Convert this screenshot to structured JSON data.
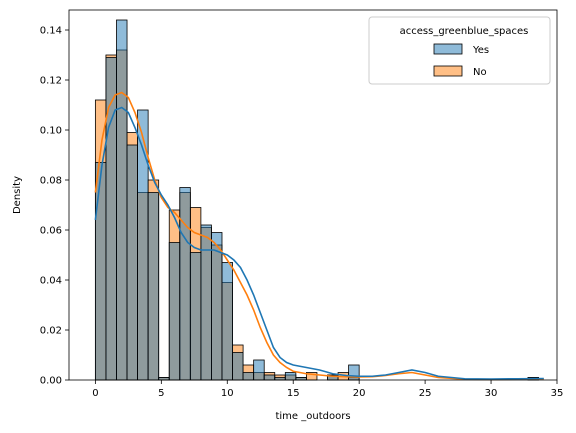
{
  "chart_data": {
    "type": "histogram",
    "xlabel": "time _outdoors",
    "ylabel": "Density",
    "xlim": [
      -2,
      35
    ],
    "ylim": [
      0,
      0.148
    ],
    "x_ticks": [
      0,
      5,
      10,
      15,
      20,
      25,
      30,
      35
    ],
    "y_ticks": [
      0.0,
      0.02,
      0.04,
      0.06,
      0.08,
      0.1,
      0.12,
      0.14
    ],
    "y_tick_labels": [
      "0.00",
      "0.02",
      "0.04",
      "0.06",
      "0.08",
      "0.10",
      "0.12",
      "0.14"
    ],
    "legend": {
      "title": "access_greenblue_spaces",
      "position": "top-right",
      "entries": [
        {
          "label": "Yes",
          "color": "#1f77b4"
        },
        {
          "label": "No",
          "color": "#ff7f0e"
        }
      ]
    },
    "bin_width": 0.8,
    "bin_start": 0,
    "series": [
      {
        "name": "No",
        "color": "#ff7f0e",
        "values": [
          0.112,
          0.13,
          0.132,
          0.099,
          0.075,
          0.08,
          0.001,
          0.068,
          0.075,
          0.069,
          0.061,
          0.054,
          0.039,
          0.014,
          0.006,
          0.003,
          0.003,
          0.002,
          0.002,
          0.001,
          0.003,
          0.0,
          0.002,
          0.003,
          0.001,
          0.0,
          0.0,
          0.0,
          0.0,
          0.0,
          0.0,
          0.0,
          0.0,
          0.0,
          0.0,
          0.0,
          0.0,
          0.0,
          0.0,
          0.0,
          0.0,
          0.001
        ]
      },
      {
        "name": "Yes",
        "color": "#1f77b4",
        "values": [
          0.087,
          0.129,
          0.144,
          0.094,
          0.108,
          0.075,
          0.001,
          0.055,
          0.077,
          0.051,
          0.062,
          0.059,
          0.047,
          0.011,
          0.003,
          0.008,
          0.002,
          0.001,
          0.003,
          0.001,
          0.0,
          0.0,
          0.002,
          0.0,
          0.006,
          0.0,
          0.0,
          0.0,
          0.0,
          0.0,
          0.0,
          0.0,
          0.0,
          0.0,
          0.0,
          0.0,
          0.0,
          0.0,
          0.0,
          0.0,
          0.0,
          0.001
        ]
      }
    ],
    "kde": [
      {
        "name": "No",
        "color": "#ff7f0e",
        "x": [
          0,
          0.5,
          1,
          1.5,
          2,
          2.5,
          3,
          3.5,
          4,
          4.5,
          5,
          5.5,
          6,
          6.5,
          7,
          7.5,
          8,
          8.5,
          9,
          9.5,
          10,
          10.5,
          11,
          11.5,
          12,
          12.5,
          13,
          13.5,
          14,
          14.5,
          15,
          16,
          17,
          18,
          19,
          20,
          21,
          22,
          23,
          24,
          25,
          26,
          28,
          30,
          32,
          34
        ],
        "y": [
          0.075,
          0.096,
          0.109,
          0.114,
          0.115,
          0.113,
          0.107,
          0.099,
          0.089,
          0.08,
          0.073,
          0.069,
          0.067,
          0.064,
          0.061,
          0.059,
          0.058,
          0.057,
          0.055,
          0.052,
          0.048,
          0.044,
          0.039,
          0.034,
          0.028,
          0.021,
          0.015,
          0.01,
          0.007,
          0.005,
          0.0035,
          0.0025,
          0.002,
          0.0015,
          0.0013,
          0.0012,
          0.0013,
          0.0018,
          0.0025,
          0.003,
          0.002,
          0.001,
          0.0003,
          0.0002,
          0.0003,
          0.0004
        ]
      },
      {
        "name": "Yes",
        "color": "#1f77b4",
        "x": [
          0,
          0.5,
          1,
          1.5,
          2,
          2.5,
          3,
          3.5,
          4,
          4.5,
          5,
          5.5,
          6,
          6.5,
          7,
          7.5,
          8,
          8.5,
          9,
          9.5,
          10,
          10.5,
          11,
          11.5,
          12,
          12.5,
          13,
          13.5,
          14,
          14.5,
          15,
          16,
          17,
          18,
          19,
          20,
          21,
          22,
          23,
          24,
          25,
          26,
          28,
          30,
          32,
          34
        ],
        "y": [
          0.064,
          0.086,
          0.101,
          0.108,
          0.109,
          0.107,
          0.101,
          0.094,
          0.086,
          0.079,
          0.074,
          0.07,
          0.065,
          0.059,
          0.055,
          0.053,
          0.052,
          0.052,
          0.052,
          0.051,
          0.05,
          0.048,
          0.045,
          0.04,
          0.034,
          0.027,
          0.02,
          0.013,
          0.009,
          0.007,
          0.006,
          0.005,
          0.004,
          0.0025,
          0.0018,
          0.0015,
          0.0015,
          0.002,
          0.003,
          0.004,
          0.003,
          0.0015,
          0.0005,
          0.0004,
          0.0005,
          0.0006
        ]
      }
    ]
  }
}
